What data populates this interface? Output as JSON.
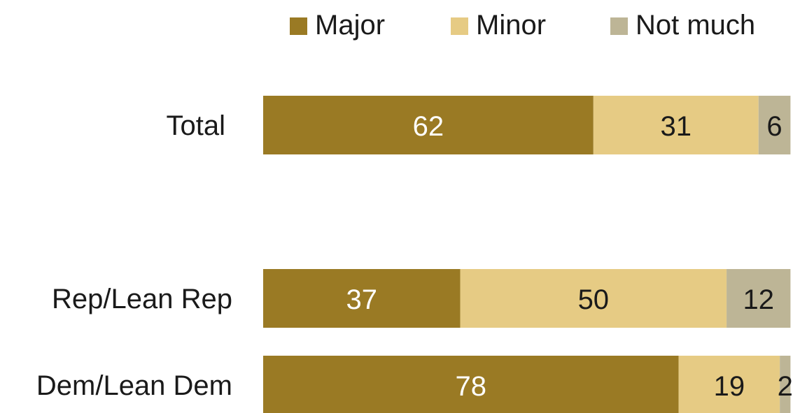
{
  "chart_data": {
    "type": "bar",
    "orientation": "horizontal",
    "stacked": true,
    "legend_position": "top",
    "grid": false,
    "xlim": [
      0,
      100
    ],
    "categories": [
      "Total",
      "Rep/Lean Rep",
      "Dem/Lean Dem"
    ],
    "series": [
      {
        "name": "Major",
        "color": "#9a7a24",
        "label_color": "#ffffff",
        "values": [
          62,
          37,
          78
        ]
      },
      {
        "name": "Minor",
        "color": "#e6cb84",
        "label_color": "#1a1a1a",
        "values": [
          31,
          50,
          19
        ]
      },
      {
        "name": "Not much",
        "color": "#bdb596",
        "label_color": "#1a1a1a",
        "values": [
          6,
          12,
          2
        ]
      }
    ],
    "data_labels": [
      [
        "62",
        "31",
        "6"
      ],
      [
        "37",
        "50",
        "12"
      ],
      [
        "78",
        "19",
        "2"
      ]
    ]
  }
}
